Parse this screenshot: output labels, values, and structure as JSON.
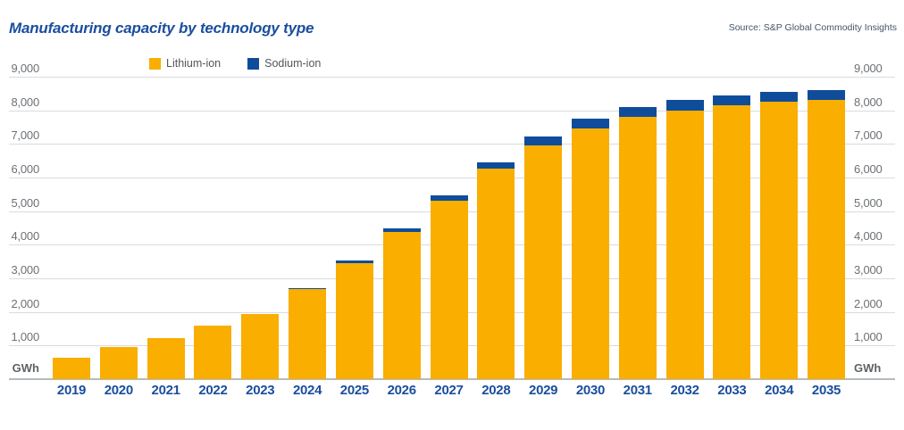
{
  "header": {
    "title": "Manufacturing capacity by technology type",
    "source": "Source: S&P Global Commodity Insights"
  },
  "legend": [
    {
      "label": "Lithium-ion",
      "color": "#F9AE00"
    },
    {
      "label": "Sodium-ion",
      "color": "#0F4D9A"
    }
  ],
  "axis": {
    "unit": "GWh",
    "y_ticks": [
      "1,000",
      "2,000",
      "3,000",
      "4,000",
      "5,000",
      "6,000",
      "7,000",
      "8,000",
      "9,000"
    ]
  },
  "colors": {
    "lithium": "#F9AE00",
    "sodium": "#0F4D9A",
    "navy": "#1A4E9E",
    "gridline": "#D8DBDD",
    "baseline": "#B5BABC"
  },
  "chart_data": {
    "type": "bar",
    "stacked": true,
    "title": "Manufacturing capacity by technology type",
    "categories": [
      "2019",
      "2020",
      "2021",
      "2022",
      "2023",
      "2024",
      "2025",
      "2026",
      "2027",
      "2028",
      "2029",
      "2030",
      "2031",
      "2032",
      "2033",
      "2034",
      "2035"
    ],
    "series": [
      {
        "name": "Lithium-ion",
        "color": "#F9AE00",
        "values": [
          640,
          950,
          1220,
          1600,
          1950,
          2670,
          3450,
          4380,
          5300,
          6260,
          6950,
          7450,
          7800,
          8000,
          8150,
          8250,
          8300
        ]
      },
      {
        "name": "Sodium-ion",
        "color": "#0F4D9A",
        "values": [
          0,
          0,
          0,
          0,
          0,
          25,
          75,
          110,
          160,
          200,
          270,
          300,
          300,
          300,
          300,
          300,
          300
        ]
      }
    ],
    "xlabel": "",
    "ylabel": "GWh",
    "ylim": [
      0,
      9000
    ],
    "y_tick_step": 1000,
    "grid": true,
    "legend_position": "top"
  }
}
